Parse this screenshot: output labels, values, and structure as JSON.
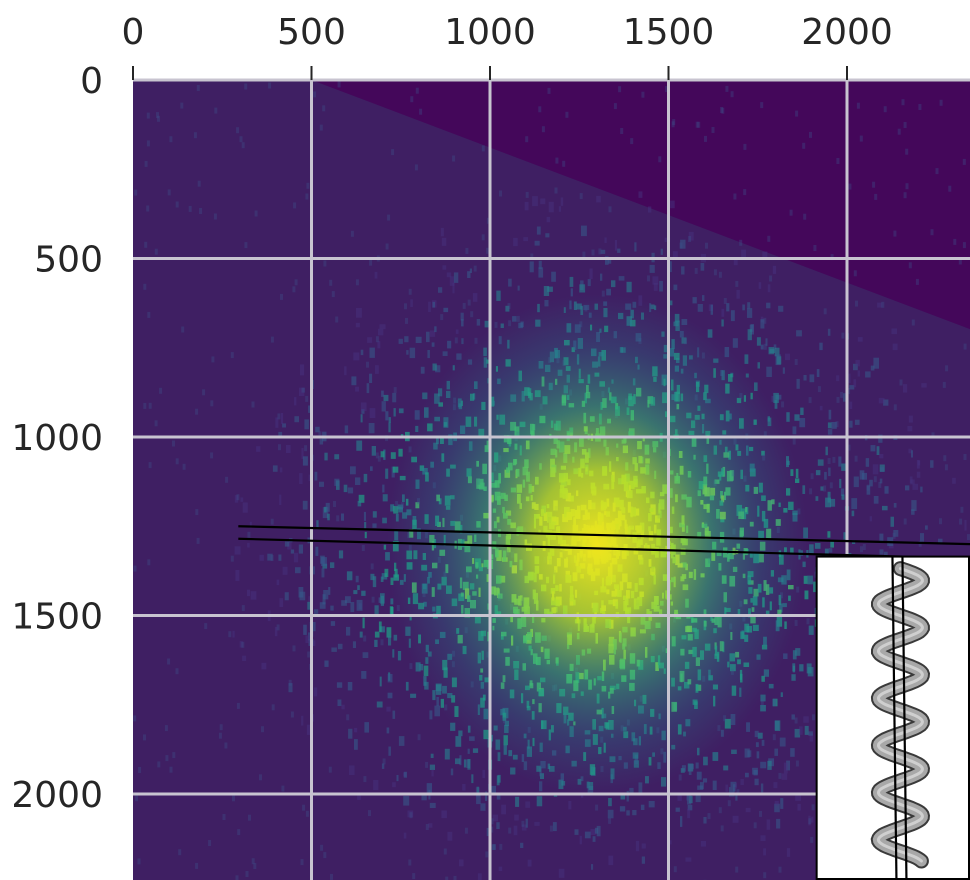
{
  "chart_data": {
    "type": "heatmap",
    "title": "",
    "xlabel": "",
    "ylabel": "",
    "xlim": [
      0,
      2350
    ],
    "ylim": [
      2250,
      0
    ],
    "x_ticks": [
      "0",
      "500",
      "1000",
      "1500",
      "2000"
    ],
    "y_ticks": [
      "0",
      "500",
      "1000",
      "1500",
      "2000"
    ],
    "x_tick_values": [
      0,
      500,
      1000,
      1500,
      2000
    ],
    "y_tick_values": [
      0,
      500,
      1000,
      1500,
      2000
    ],
    "grid": true,
    "x_axis_position": "top",
    "colormap": "viridis",
    "colors": {
      "background": "#3f1f63",
      "corner_region": "#44075a",
      "low": "#482a6c",
      "mid": "#2a8d8a",
      "high": "#d5e61c",
      "grid": "#c8c4d0",
      "line": "#000000"
    },
    "description_items": {
      "speckle_center": [
        1300,
        1300
      ],
      "overlay_lines": [
        {
          "x": [
            295,
            2350
          ],
          "y": [
            1250,
            1300
          ]
        },
        {
          "x": [
            295,
            2350
          ],
          "y": [
            1285,
            1340
          ]
        }
      ],
      "inset": {
        "content": "helix-icon",
        "x_range": [
          1915,
          2350
        ],
        "y_range": [
          1335,
          2250
        ]
      }
    }
  }
}
